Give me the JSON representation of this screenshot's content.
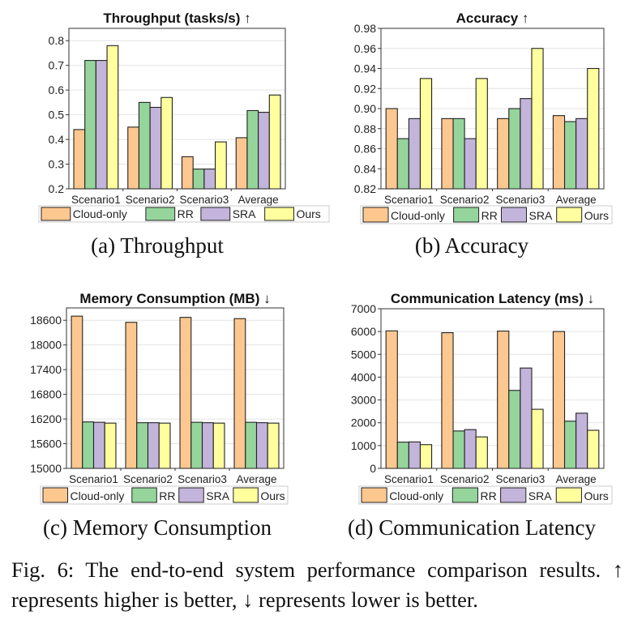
{
  "figure_caption": "Fig. 6: The end-to-end system performance comparison results. ↑ represents higher is better, ↓ represents lower is better.",
  "colors": {
    "Cloud-only": "#FDC890",
    "RR": "#95D59C",
    "SRA": "#C3B4DB",
    "Ours": "#FFFF9E"
  },
  "chart_data": [
    {
      "type": "bar",
      "subcaption": "(a) Throughput",
      "title": "Throughput (tasks/s) ↑",
      "categories": [
        "Scenario1",
        "Scenario2",
        "Scenario3",
        "Average"
      ],
      "ylim": [
        0.2,
        0.85
      ],
      "yticks": [
        0.2,
        0.3,
        0.4,
        0.5,
        0.6,
        0.7,
        0.8
      ],
      "ytick_labels": [
        "0.2",
        "0.3",
        "0.4",
        "0.5",
        "0.6",
        "0.7",
        "0.8"
      ],
      "grid": true,
      "legend": "bottom",
      "series": [
        {
          "name": "Cloud-only",
          "values": [
            0.44,
            0.45,
            0.33,
            0.407
          ]
        },
        {
          "name": "RR",
          "values": [
            0.72,
            0.55,
            0.28,
            0.517
          ]
        },
        {
          "name": "SRA",
          "values": [
            0.72,
            0.53,
            0.28,
            0.51
          ]
        },
        {
          "name": "Ours",
          "values": [
            0.78,
            0.57,
            0.39,
            0.58
          ]
        }
      ]
    },
    {
      "type": "bar",
      "subcaption": "(b) Accuracy",
      "title": "Accuracy ↑",
      "categories": [
        "Scenario1",
        "Scenario2",
        "Scenario3",
        "Average"
      ],
      "ylim": [
        0.82,
        0.98
      ],
      "yticks": [
        0.82,
        0.84,
        0.86,
        0.88,
        0.9,
        0.92,
        0.94,
        0.96,
        0.98
      ],
      "ytick_labels": [
        "0.82",
        "0.84",
        "0.86",
        "0.88",
        "0.90",
        "0.92",
        "0.94",
        "0.96",
        "0.98"
      ],
      "grid": true,
      "legend": "bottom",
      "series": [
        {
          "name": "Cloud-only",
          "values": [
            0.9,
            0.89,
            0.89,
            0.893
          ]
        },
        {
          "name": "RR",
          "values": [
            0.87,
            0.89,
            0.9,
            0.887
          ]
        },
        {
          "name": "SRA",
          "values": [
            0.89,
            0.87,
            0.91,
            0.89
          ]
        },
        {
          "name": "Ours",
          "values": [
            0.93,
            0.93,
            0.96,
            0.94
          ]
        }
      ]
    },
    {
      "type": "bar",
      "subcaption": "(c) Memory Consumption",
      "title": "Memory Consumption (MB) ↓",
      "categories": [
        "Scenario1",
        "Scenario2",
        "Scenario3",
        "Average"
      ],
      "ylim": [
        15000,
        18900
      ],
      "yticks": [
        15000,
        15600,
        16200,
        16800,
        17400,
        18000,
        18600
      ],
      "ytick_labels": [
        "15000",
        "15600",
        "16200",
        "16800",
        "17400",
        "18000",
        "18600"
      ],
      "grid": true,
      "legend": "bottom",
      "series": [
        {
          "name": "Cloud-only",
          "values": [
            18700,
            18550,
            18670,
            18640
          ]
        },
        {
          "name": "RR",
          "values": [
            16130,
            16110,
            16120,
            16120
          ]
        },
        {
          "name": "SRA",
          "values": [
            16120,
            16110,
            16110,
            16110
          ]
        },
        {
          "name": "Ours",
          "values": [
            16100,
            16100,
            16100,
            16100
          ]
        }
      ]
    },
    {
      "type": "bar",
      "subcaption": "(d) Communication Latency",
      "title": "Communication Latency (ms) ↓",
      "categories": [
        "Scenario1",
        "Scenario2",
        "Scenario3",
        "Average"
      ],
      "ylim": [
        0,
        7000
      ],
      "yticks": [
        0,
        1000,
        2000,
        3000,
        4000,
        5000,
        6000,
        7000
      ],
      "ytick_labels": [
        "0",
        "1000",
        "2000",
        "3000",
        "4000",
        "5000",
        "6000",
        "7000"
      ],
      "grid": true,
      "legend": "bottom",
      "series": [
        {
          "name": "Cloud-only",
          "values": [
            6030,
            5950,
            6020,
            6000
          ]
        },
        {
          "name": "RR",
          "values": [
            1150,
            1640,
            3420,
            2070
          ]
        },
        {
          "name": "SRA",
          "values": [
            1160,
            1700,
            4400,
            2420
          ]
        },
        {
          "name": "Ours",
          "values": [
            1040,
            1380,
            2590,
            1670
          ]
        }
      ]
    }
  ]
}
